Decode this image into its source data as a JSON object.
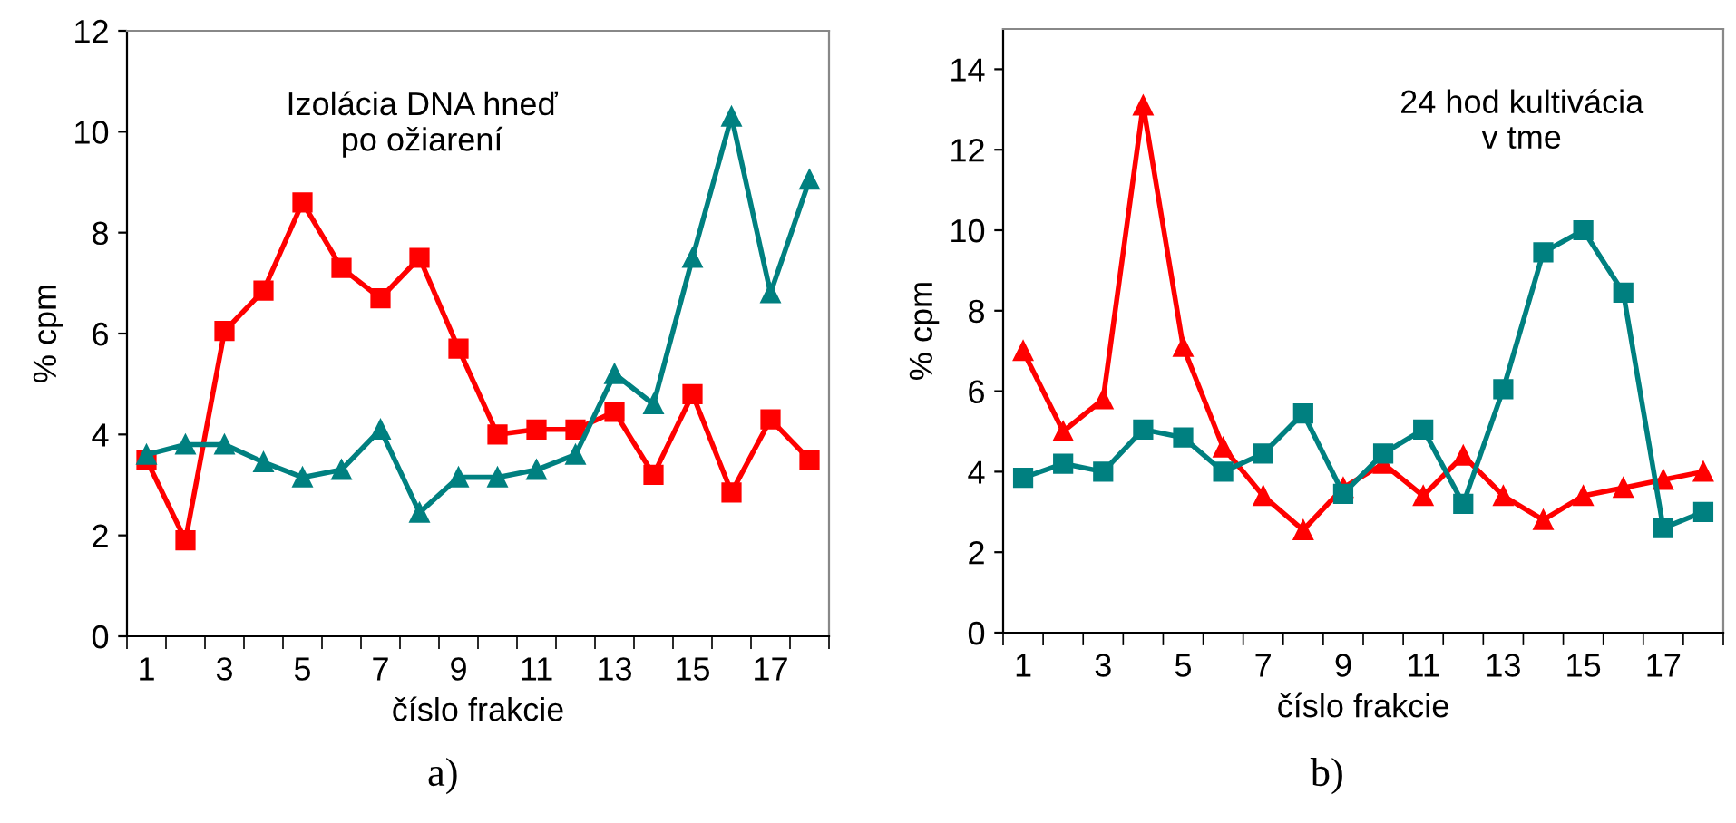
{
  "chart_data": [
    {
      "type": "line",
      "xlabel": "číslo frakcie",
      "ylabel": "% cpm",
      "annotations": [
        "Izolácia DNA hneď\npo ožiarení",
        "a)"
      ],
      "categories": [
        "1",
        null,
        "3",
        null,
        "5",
        null,
        "7",
        null,
        "9",
        null,
        "11",
        null,
        "13",
        null,
        "15",
        null,
        "17",
        null
      ],
      "ylim": [
        0,
        12
      ],
      "yticks": [
        0,
        2,
        4,
        6,
        8,
        10,
        12
      ],
      "grid": false,
      "legend": false,
      "series": [
        {
          "color": "#ff0000",
          "marker": "square",
          "values": [
            3.5,
            1.9,
            6.05,
            6.85,
            8.6,
            7.3,
            6.7,
            7.5,
            5.7,
            4.0,
            4.1,
            4.1,
            4.45,
            3.2,
            4.8,
            2.85,
            4.3,
            3.5
          ]
        },
        {
          "color": "#008080",
          "marker": "triangle",
          "values": [
            3.6,
            3.8,
            3.8,
            3.45,
            3.15,
            3.3,
            4.1,
            2.45,
            3.15,
            3.15,
            3.3,
            3.6,
            5.2,
            4.6,
            7.5,
            10.3,
            6.8,
            9.05
          ]
        }
      ]
    },
    {
      "type": "line",
      "xlabel": "číslo frakcie",
      "ylabel": "% cpm",
      "annotations": [
        "24 hod kultivácia\nv tme",
        "b)"
      ],
      "categories": [
        "1",
        null,
        "3",
        null,
        "5",
        null,
        "7",
        null,
        "9",
        null,
        "11",
        null,
        "13",
        null,
        "15",
        null,
        "17",
        null
      ],
      "ylim": [
        0,
        15
      ],
      "yticks": [
        0,
        2,
        4,
        6,
        8,
        10,
        12,
        14
      ],
      "grid": false,
      "legend": false,
      "series": [
        {
          "color": "#ff0000",
          "marker": "triangle",
          "values": [
            7.0,
            5.0,
            5.8,
            13.1,
            7.1,
            4.6,
            3.4,
            2.55,
            3.6,
            4.2,
            3.4,
            4.4,
            3.4,
            2.8,
            3.4,
            3.6,
            3.8,
            4.0
          ]
        },
        {
          "color": "#008080",
          "marker": "square",
          "values": [
            3.85,
            4.2,
            4.0,
            5.05,
            4.85,
            4.0,
            4.45,
            5.45,
            3.45,
            4.45,
            5.05,
            3.2,
            6.05,
            9.45,
            10.0,
            8.45,
            2.6,
            3.0
          ]
        }
      ]
    }
  ]
}
